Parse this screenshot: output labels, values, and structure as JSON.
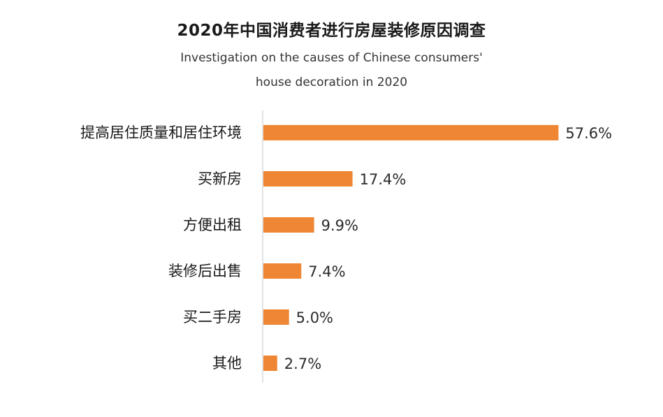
{
  "colors": {
    "bar": "#ef8633",
    "axis": "#d9d9d9"
  },
  "chart_data": {
    "type": "bar",
    "orientation": "horizontal",
    "title": "2020年中国消费者进行房屋装修原因调查",
    "subtitle_lines": [
      "Investigation on the causes of Chinese consumers'",
      "house decoration in 2020"
    ],
    "categories": [
      "提高居住质量和居住环境",
      "买新房",
      "方便出租",
      "装修后出售",
      "买二手房",
      "其他"
    ],
    "values": [
      57.6,
      17.4,
      9.9,
      7.4,
      5.0,
      2.7
    ],
    "value_labels": [
      "57.6%",
      "17.4%",
      "9.9%",
      "7.4%",
      "5.0%",
      "2.7%"
    ],
    "unit": "%",
    "xlim": [
      0,
      60
    ],
    "grid": false,
    "legend": "none"
  }
}
